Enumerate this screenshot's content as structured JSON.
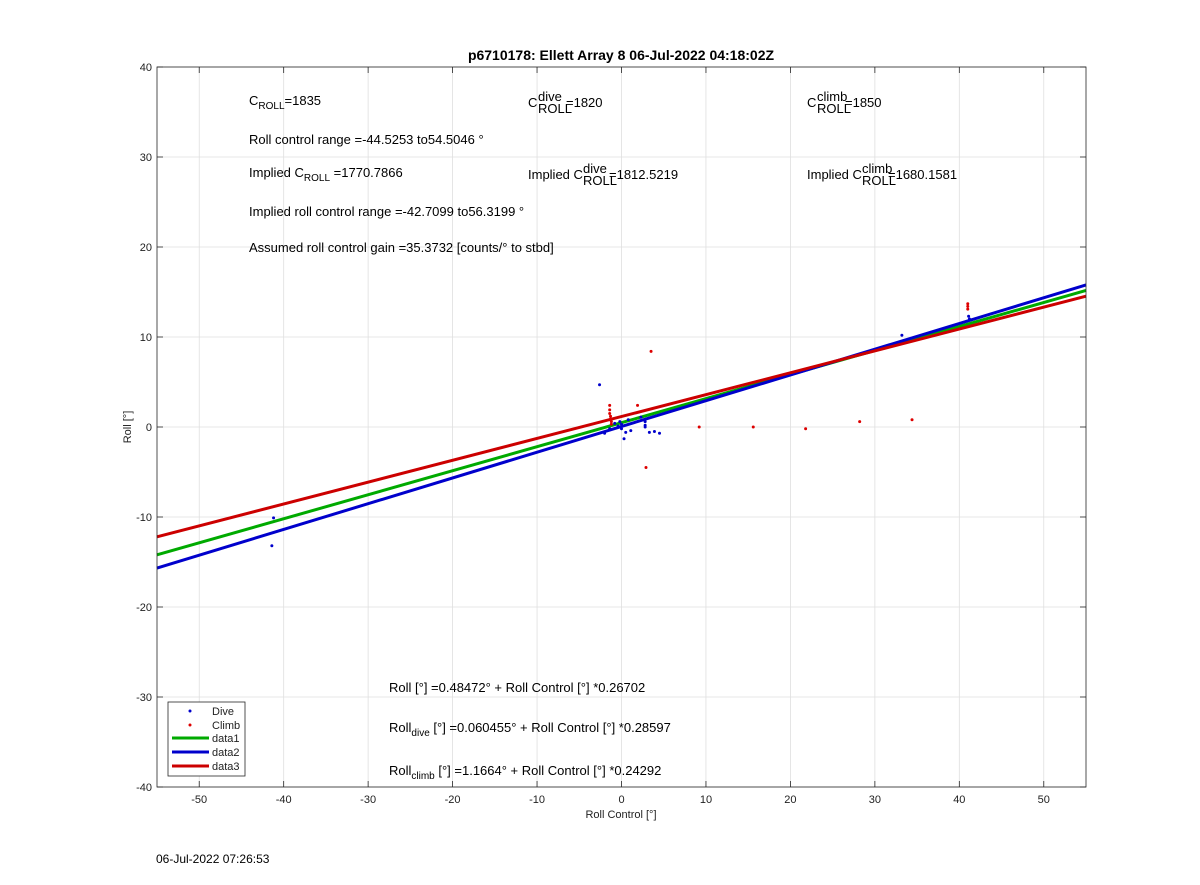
{
  "chart_data": {
    "type": "scatter",
    "title": "p6710178: Ellett Array 8 06-Jul-2022 04:18:02Z",
    "xlabel": "Roll Control [°]",
    "ylabel": "Roll [°]",
    "xlim": [
      -55,
      55
    ],
    "ylim": [
      -40,
      40
    ],
    "x_ticks": [
      -50,
      -40,
      -30,
      -20,
      -10,
      0,
      10,
      20,
      30,
      40,
      50
    ],
    "y_ticks": [
      -40,
      -30,
      -20,
      -10,
      0,
      10,
      20,
      30,
      40
    ],
    "grid": true,
    "legend_position": "bottom-left",
    "series": [
      {
        "name": "Dive",
        "kind": "points",
        "color": "#0000cc",
        "points": [
          [
            -41.2,
            -10.1
          ],
          [
            -41.4,
            -13.2
          ],
          [
            -2.6,
            4.7
          ],
          [
            -2.0,
            -0.7
          ],
          [
            -1.4,
            -0.2
          ],
          [
            -0.8,
            0.4
          ],
          [
            -0.4,
            0.1
          ],
          [
            -0.2,
            0.6
          ],
          [
            0.0,
            -0.2
          ],
          [
            0.0,
            0.3
          ],
          [
            0.3,
            -1.3
          ],
          [
            0.5,
            -0.6
          ],
          [
            0.8,
            0.8
          ],
          [
            1.1,
            -0.4
          ],
          [
            2.3,
            1.1
          ],
          [
            2.8,
            0.6
          ],
          [
            2.8,
            0.2
          ],
          [
            2.8,
            0.0
          ],
          [
            3.3,
            -0.6
          ],
          [
            3.9,
            -0.5
          ],
          [
            4.5,
            -0.7
          ],
          [
            33.2,
            10.2
          ],
          [
            41.1,
            12.3
          ],
          [
            41.2,
            12.0
          ]
        ]
      },
      {
        "name": "Climb",
        "kind": "points",
        "color": "#dd0000",
        "points": [
          [
            -1.4,
            2.4
          ],
          [
            -1.4,
            1.9
          ],
          [
            -1.4,
            1.5
          ],
          [
            -1.3,
            1.2
          ],
          [
            -1.3,
            0.9
          ],
          [
            -1.2,
            0.6
          ],
          [
            -1.2,
            0.3
          ],
          [
            1.9,
            2.4
          ],
          [
            2.9,
            -4.5
          ],
          [
            3.5,
            8.4
          ],
          [
            9.2,
            0.0
          ],
          [
            15.6,
            0.0
          ],
          [
            21.8,
            -0.2
          ],
          [
            28.2,
            0.6
          ],
          [
            34.4,
            0.8
          ],
          [
            41.0,
            13.7
          ],
          [
            41.0,
            13.4
          ],
          [
            41.0,
            13.1
          ]
        ]
      },
      {
        "name": "data1",
        "kind": "line",
        "color": "#00aa00",
        "x": [
          -55,
          55
        ],
        "y": [
          -14.2,
          15.17
        ]
      },
      {
        "name": "data2",
        "kind": "line",
        "color": "#0000cc",
        "x": [
          -55,
          55
        ],
        "y": [
          -15.67,
          15.79
        ]
      },
      {
        "name": "data3",
        "kind": "line",
        "color": "#cc0000",
        "x": [
          -55,
          55
        ],
        "y": [
          -12.2,
          14.53
        ]
      }
    ]
  },
  "annotations": {
    "c_roll": {
      "base": "C",
      "sub": "ROLL",
      "value": "=1835"
    },
    "c_roll_dive": {
      "base": "C",
      "sup": "dive",
      "sub": "ROLL",
      "value": "=1820"
    },
    "c_roll_climb": {
      "base": "C",
      "sup": "climb",
      "sub": "ROLL",
      "value": "=1850"
    },
    "roll_control_range": "Roll control range =-44.5253 to54.5046 °",
    "implied_c_roll": {
      "prefix": "Implied C",
      "sub": "ROLL",
      "value": " =1770.7866"
    },
    "implied_c_roll_dive": {
      "prefix": "Implied C",
      "sup": "dive",
      "sub": "ROLL",
      "value": " =1812.5219"
    },
    "implied_c_roll_climb": {
      "prefix": "Implied C",
      "sup": "climb",
      "sub": "ROLL",
      "value": " =1680.1581"
    },
    "implied_range": "Implied roll control range =-42.7099 to56.3199 °",
    "assumed_gain": "Assumed roll control gain =35.3732 [counts/° to stbd]",
    "fit_all": "Roll [°] =0.48472° + Roll Control [°] *0.26702",
    "fit_dive": {
      "prefix": "Roll",
      "sub": "dive",
      "rest": " [°] =0.060455° + Roll Control [°] *0.28597"
    },
    "fit_climb": {
      "prefix": "Roll",
      "sub": "climb",
      "rest": " [°] =1.1664° + Roll Control [°] *0.24292"
    }
  },
  "footer": {
    "timestamp": "06-Jul-2022 07:26:53"
  }
}
